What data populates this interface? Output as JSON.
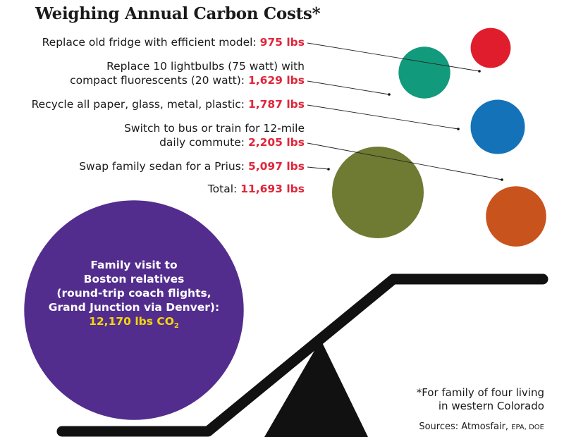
{
  "title": "Weighing Annual Carbon Costs*",
  "chart_data": {
    "type": "bubble",
    "unit": "lbs",
    "items": [
      {
        "label_lines": [
          "Replace old fridge with efficient model:"
        ],
        "value": 975,
        "value_text": "975 lbs",
        "color": "#e01d2d"
      },
      {
        "label_lines": [
          "Replace 10 lightbulbs (75 watt) with",
          "compact fluorescents (20 watt):"
        ],
        "value": 1629,
        "value_text": "1,629 lbs",
        "color": "#129a7c"
      },
      {
        "label_lines": [
          "Recycle all paper, glass, metal, plastic:"
        ],
        "value": 1787,
        "value_text": "1,787 lbs",
        "color": "#1473b8"
      },
      {
        "label_lines": [
          "Switch to bus or train for 12-mile",
          "daily commute:"
        ],
        "value": 2205,
        "value_text": "2,205 lbs",
        "color": "#c9531d"
      },
      {
        "label_lines": [
          "Swap family sedan for a Prius:"
        ],
        "value": 5097,
        "value_text": "5,097 lbs",
        "color": "#6f7a32"
      }
    ],
    "total": {
      "label": "Total:",
      "value": 11693,
      "value_text": "11,693 lbs"
    },
    "comparison": {
      "lines": [
        "Family visit to",
        "Boston relatives",
        "(round-trip coach flights,",
        "Grand Junction via Denver):"
      ],
      "value": 12170,
      "value_text": "12,170 lbs CO",
      "value_sub": "2",
      "color": "#532d8e"
    }
  },
  "footnote": [
    "*For family of four living",
    "in western Colorado"
  ],
  "sources": {
    "label": "Sources: Atmosfair,",
    "rest": "EPA, DOE"
  }
}
